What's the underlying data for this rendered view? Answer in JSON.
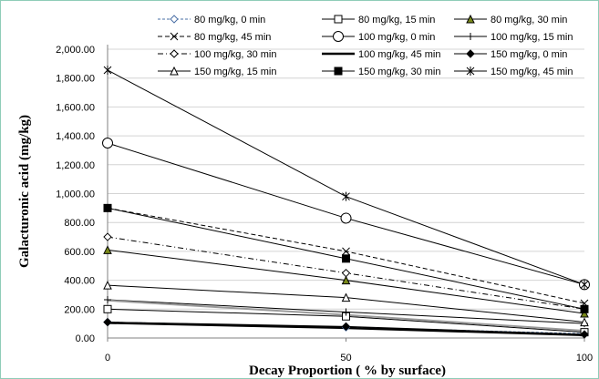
{
  "chart_data": {
    "type": "line",
    "title": "",
    "xlabel": "Decay Proportion ( % by surface)",
    "ylabel": "Galacturonic acid (mg/kg)",
    "x": [
      0,
      50,
      100
    ],
    "x_tick_labels": [
      "0",
      "50",
      "100"
    ],
    "ylim": [
      0,
      2000
    ],
    "y_ticks": [
      0,
      200,
      400,
      600,
      800,
      1000,
      1200,
      1400,
      1600,
      1800,
      2000
    ],
    "y_tick_labels": [
      "0.00",
      "200.00",
      "400.00",
      "600.00",
      "800.00",
      "1,000.00",
      "1,200.00",
      "1,400.00",
      "1,600.00",
      "1,800.00",
      "2,000.00"
    ],
    "grid": "horizontal",
    "legend_position": "top",
    "series": [
      {
        "name": "80 mg/kg, 0 min",
        "values": [
          110,
          75,
          30
        ],
        "color": "#4a6fa5",
        "dash": "3,2",
        "marker": "diamond-open",
        "width": 1
      },
      {
        "name": "80 mg/kg, 15 min",
        "values": [
          200,
          150,
          40
        ],
        "color": "#000000",
        "dash": "",
        "marker": "square-open",
        "width": 1
      },
      {
        "name": "80 mg/kg, 30 min",
        "values": [
          610,
          400,
          170
        ],
        "color": "#000000",
        "dash": "",
        "marker": "triangle-filled",
        "marker_color": "#7a8a1a",
        "width": 1
      },
      {
        "name": "80 mg/kg, 45 min",
        "values": [
          900,
          600,
          240
        ],
        "color": "#000000",
        "dash": "5,3",
        "marker": "x",
        "width": 1
      },
      {
        "name": "100 mg/kg, 0 min",
        "values": [
          1350,
          830,
          370
        ],
        "color": "#000000",
        "dash": "",
        "marker": "circle-open",
        "width": 1
      },
      {
        "name": "100 mg/kg, 15 min",
        "values": [
          265,
          180,
          100
        ],
        "color": "#000000",
        "dash": "",
        "marker": "plus",
        "width": 1
      },
      {
        "name": "100 mg/kg, 30 min",
        "values": [
          700,
          450,
          200
        ],
        "color": "#000000",
        "dash": "6,3,1,3",
        "marker": "diamond-open",
        "width": 1
      },
      {
        "name": "100 mg/kg, 45 min",
        "values": [
          105,
          70,
          20
        ],
        "color": "#000000",
        "dash": "",
        "marker": "none",
        "width": 2.5
      },
      {
        "name": "150 mg/kg, 0 min",
        "values": [
          110,
          80,
          25
        ],
        "color": "#000000",
        "dash": "",
        "marker": "diamond-filled",
        "width": 1
      },
      {
        "name": "150 mg/kg, 15 min",
        "values": [
          365,
          280,
          110
        ],
        "color": "#000000",
        "dash": "",
        "marker": "triangle-open",
        "width": 1
      },
      {
        "name": "150 mg/kg, 30 min",
        "values": [
          900,
          550,
          200
        ],
        "color": "#000000",
        "dash": "",
        "marker": "square-filled",
        "width": 1
      },
      {
        "name": "150 mg/kg, 45 min",
        "values": [
          1855,
          980,
          370
        ],
        "color": "#000000",
        "dash": "",
        "marker": "asterisk",
        "width": 1
      },
      {
        "name": "",
        "values": [
          260,
          160,
          50
        ],
        "color": "#9a9a9a",
        "dash": "",
        "marker": "none",
        "width": 2
      }
    ]
  }
}
